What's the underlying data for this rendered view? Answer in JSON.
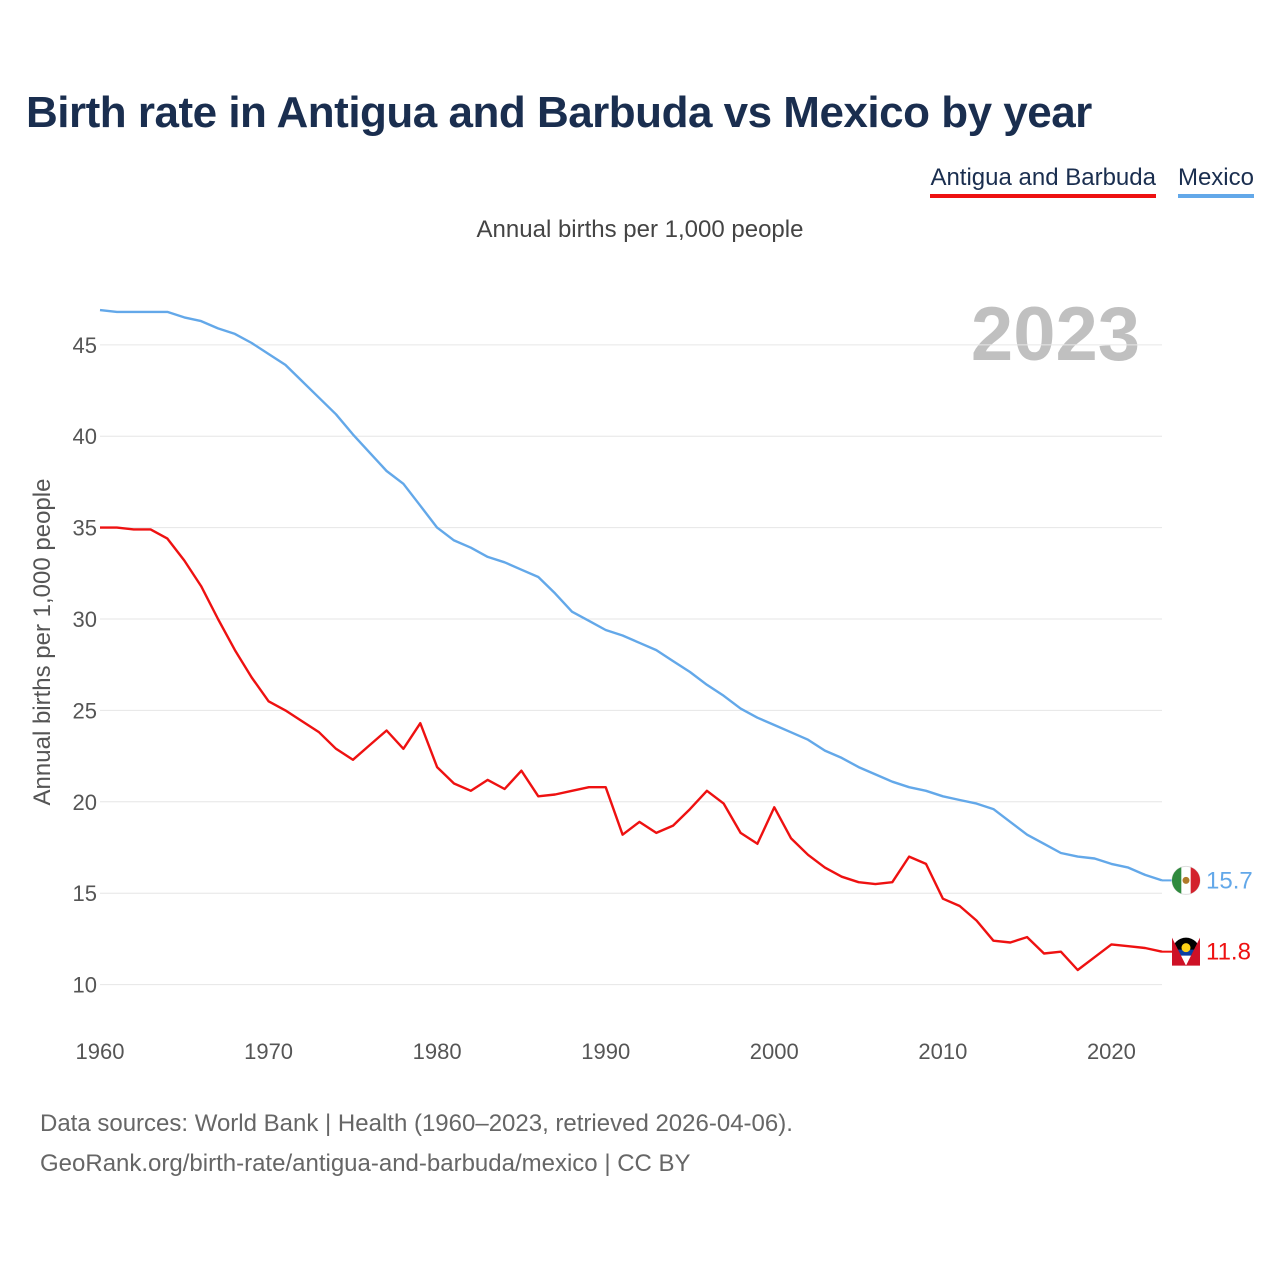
{
  "title": "Birth rate in Antigua and Barbuda vs Mexico by year",
  "subtitle": "Annual births per 1,000 people",
  "legend": [
    {
      "label": "Antigua and Barbuda",
      "color": "#ee1111"
    },
    {
      "label": "Mexico",
      "color": "#63a8e9"
    }
  ],
  "footer": {
    "line1": "Data sources: World Bank | Health (1960–2023, retrieved 2026-04-06).",
    "line2": "GeoRank.org/birth-rate/antigua-and-barbuda/mexico | CC BY"
  },
  "chart_data": {
    "type": "line",
    "title": "Birth rate in Antigua and Barbuda vs Mexico by year",
    "ylabel": "Annual births per 1,000 people",
    "xlabel": "",
    "xlim": [
      1960,
      2023
    ],
    "ylim": [
      8.5,
      48
    ],
    "yticks": [
      10,
      15,
      20,
      25,
      30,
      35,
      40,
      45
    ],
    "xticks": [
      1960,
      1970,
      1980,
      1990,
      2000,
      2010,
      2020
    ],
    "year_watermark": "2023",
    "grid": true,
    "legend_position": "top-right",
    "x": [
      1960,
      1961,
      1962,
      1963,
      1964,
      1965,
      1966,
      1967,
      1968,
      1969,
      1970,
      1971,
      1972,
      1973,
      1974,
      1975,
      1976,
      1977,
      1978,
      1979,
      1980,
      1981,
      1982,
      1983,
      1984,
      1985,
      1986,
      1987,
      1988,
      1989,
      1990,
      1991,
      1992,
      1993,
      1994,
      1995,
      1996,
      1997,
      1998,
      1999,
      2000,
      2001,
      2002,
      2003,
      2004,
      2005,
      2006,
      2007,
      2008,
      2009,
      2010,
      2011,
      2012,
      2013,
      2014,
      2015,
      2016,
      2017,
      2018,
      2019,
      2020,
      2021,
      2022,
      2023
    ],
    "series": [
      {
        "name": "Antigua and Barbuda",
        "color": "#ee1111",
        "end_label": "11.8",
        "values": [
          35.0,
          35.0,
          34.9,
          34.9,
          34.4,
          33.2,
          31.8,
          30.0,
          28.3,
          26.8,
          25.5,
          25.0,
          24.4,
          23.8,
          22.9,
          22.3,
          23.1,
          23.9,
          22.9,
          24.3,
          21.9,
          21.0,
          20.6,
          21.2,
          20.7,
          21.7,
          20.3,
          20.4,
          20.6,
          20.8,
          20.8,
          18.2,
          18.9,
          18.3,
          18.7,
          19.6,
          20.6,
          19.9,
          18.3,
          17.7,
          19.7,
          18.0,
          17.1,
          16.4,
          15.9,
          15.6,
          15.5,
          15.6,
          17.0,
          16.6,
          14.7,
          14.3,
          13.5,
          12.4,
          12.3,
          12.6,
          11.7,
          11.8,
          10.8,
          11.5,
          12.2,
          12.1,
          12.0,
          11.8
        ]
      },
      {
        "name": "Mexico",
        "color": "#63a8e9",
        "end_label": "15.7",
        "values": [
          46.9,
          46.8,
          46.8,
          46.8,
          46.8,
          46.5,
          46.3,
          45.9,
          45.6,
          45.1,
          44.5,
          43.9,
          43.0,
          42.1,
          41.2,
          40.1,
          39.1,
          38.1,
          37.4,
          36.2,
          35.0,
          34.3,
          33.9,
          33.4,
          33.1,
          32.7,
          32.3,
          31.4,
          30.4,
          29.9,
          29.4,
          29.1,
          28.7,
          28.3,
          27.7,
          27.1,
          26.4,
          25.8,
          25.1,
          24.6,
          24.2,
          23.8,
          23.4,
          22.8,
          22.4,
          21.9,
          21.5,
          21.1,
          20.8,
          20.6,
          20.3,
          20.1,
          19.9,
          19.6,
          18.9,
          18.2,
          17.7,
          17.2,
          17.0,
          16.9,
          16.6,
          16.4,
          16.0,
          15.7
        ]
      }
    ]
  }
}
